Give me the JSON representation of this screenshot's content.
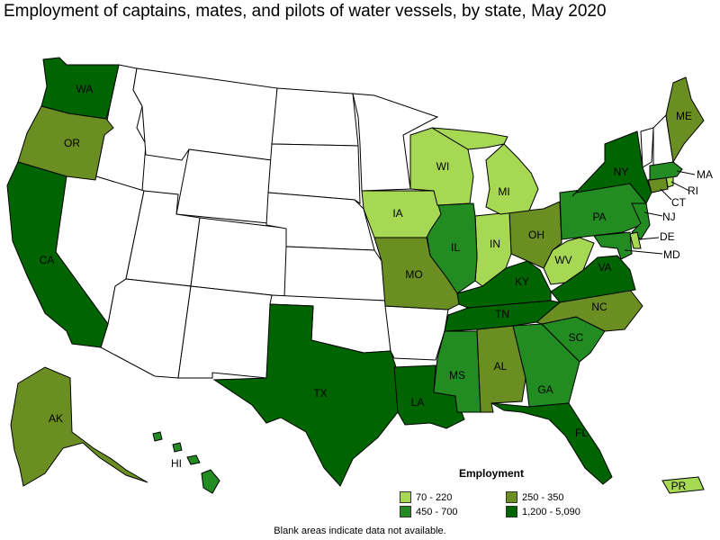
{
  "title": "Employment of captains, mates, and pilots of water vessels, by state, May 2020",
  "legend": {
    "title": "Employment",
    "items": [
      {
        "label": "70 - 220",
        "color": "#a6d854"
      },
      {
        "label": "250 - 350",
        "color": "#6b8e23"
      },
      {
        "label": "450 - 700",
        "color": "#228b22"
      },
      {
        "label": "1,200 - 5,090",
        "color": "#006400"
      }
    ]
  },
  "footnote": "Blank areas indicate data not available.",
  "colors": {
    "none": "#ffffff",
    "c1": "#a6d854",
    "c2": "#6b8e23",
    "c3": "#228b22",
    "c4": "#006400"
  },
  "states": {
    "WA": "WA",
    "OR": "OR",
    "CA": "CA",
    "AK": "AK",
    "HI": "HI",
    "TX": "TX",
    "LA": "LA",
    "MS": "MS",
    "AL": "AL",
    "GA": "GA",
    "FL": "FL",
    "SC": "SC",
    "NC": "NC",
    "TN": "TN",
    "KY": "KY",
    "VA": "VA",
    "WV": "WV",
    "OH": "OH",
    "IN": "IN",
    "IL": "IL",
    "MO": "MO",
    "IA": "IA",
    "WI": "WI",
    "MI": "MI",
    "PA": "PA",
    "NY": "NY",
    "NJ": "NJ",
    "DE": "DE",
    "MD": "MD",
    "CT": "CT",
    "RI": "RI",
    "MA": "MA",
    "ME": "ME",
    "PR": "PR"
  }
}
